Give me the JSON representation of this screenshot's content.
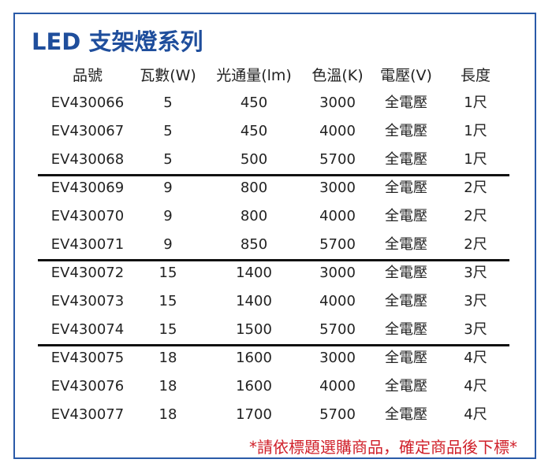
{
  "title": "LED 支架燈系列",
  "columns": [
    "品號",
    "瓦數(W)",
    "光通量(lm)",
    "色溫(K)",
    "電壓(V)",
    "長度"
  ],
  "rows": [
    [
      "EV430066",
      "5",
      "450",
      "3000",
      "全電壓",
      "1尺"
    ],
    [
      "EV430067",
      "5",
      "450",
      "4000",
      "全電壓",
      "1尺"
    ],
    [
      "EV430068",
      "5",
      "500",
      "5700",
      "全電壓",
      "1尺"
    ],
    [
      "EV430069",
      "9",
      "800",
      "3000",
      "全電壓",
      "2尺"
    ],
    [
      "EV430070",
      "9",
      "800",
      "4000",
      "全電壓",
      "2尺"
    ],
    [
      "EV430071",
      "9",
      "850",
      "5700",
      "全電壓",
      "2尺"
    ],
    [
      "EV430072",
      "15",
      "1400",
      "3000",
      "全電壓",
      "3尺"
    ],
    [
      "EV430073",
      "15",
      "1400",
      "4000",
      "全電壓",
      "3尺"
    ],
    [
      "EV430074",
      "15",
      "1500",
      "5700",
      "全電壓",
      "3尺"
    ],
    [
      "EV430075",
      "18",
      "1600",
      "3000",
      "全電壓",
      "4尺"
    ],
    [
      "EV430076",
      "18",
      "1600",
      "4000",
      "全電壓",
      "4尺"
    ],
    [
      "EV430077",
      "18",
      "1700",
      "5700",
      "全電壓",
      "4尺"
    ]
  ],
  "note": "*請依標題選購商品，確定商品後下標*",
  "colors": {
    "title": "#1f4e9c",
    "border": "#2a5aa8",
    "note": "#d0202a"
  }
}
